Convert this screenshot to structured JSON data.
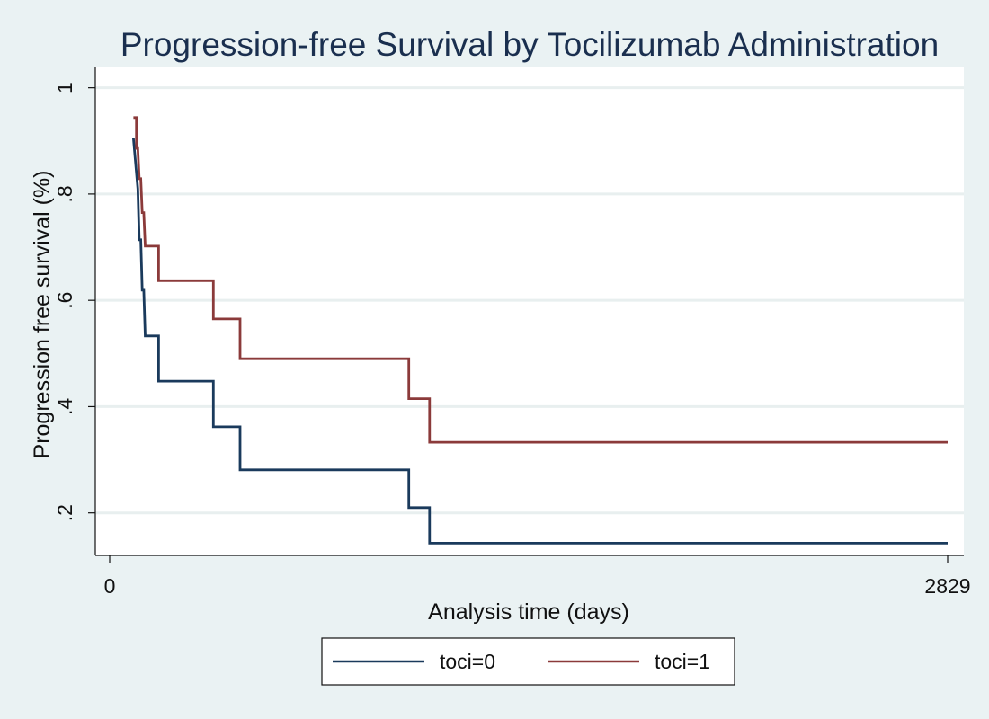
{
  "chart_data": {
    "type": "line",
    "subtype": "step",
    "title": "Progression-free Survival by Tocilizumab Administration",
    "xlabel": "Analysis time (days)",
    "ylabel": "Progression free survival (%)",
    "xlim": [
      0,
      2829
    ],
    "ylim": [
      0.12,
      1.04
    ],
    "x_ticks": [
      0,
      2829
    ],
    "x_tick_labels": [
      "0",
      "2829"
    ],
    "y_ticks": [
      0.2,
      0.4,
      0.6,
      0.8,
      1
    ],
    "y_tick_labels": [
      ".2",
      ".4",
      ".6",
      ".8",
      "1"
    ],
    "grid": "horizontal",
    "legend": "bottom",
    "series": [
      {
        "name": "toci=0",
        "color": "#1a3a5c",
        "points": [
          [
            80,
            0.905
          ],
          [
            95,
            0.81
          ],
          [
            100,
            0.714
          ],
          [
            105,
            0.714
          ],
          [
            110,
            0.619
          ],
          [
            115,
            0.619
          ],
          [
            120,
            0.533
          ],
          [
            165,
            0.533
          ],
          [
            165,
            0.448
          ],
          [
            350,
            0.448
          ],
          [
            350,
            0.362
          ],
          [
            440,
            0.362
          ],
          [
            440,
            0.281
          ],
          [
            1010,
            0.281
          ],
          [
            1010,
            0.21
          ],
          [
            1080,
            0.21
          ],
          [
            1080,
            0.143
          ],
          [
            2829,
            0.143
          ]
        ]
      },
      {
        "name": "toci=1",
        "color": "#8b3a3a",
        "points": [
          [
            80,
            0.944
          ],
          [
            90,
            0.944
          ],
          [
            90,
            0.886
          ],
          [
            95,
            0.886
          ],
          [
            100,
            0.829
          ],
          [
            105,
            0.829
          ],
          [
            110,
            0.765
          ],
          [
            115,
            0.765
          ],
          [
            120,
            0.702
          ],
          [
            165,
            0.702
          ],
          [
            165,
            0.637
          ],
          [
            350,
            0.637
          ],
          [
            350,
            0.565
          ],
          [
            440,
            0.565
          ],
          [
            440,
            0.49
          ],
          [
            1010,
            0.49
          ],
          [
            1010,
            0.415
          ],
          [
            1080,
            0.415
          ],
          [
            1080,
            0.333
          ],
          [
            2829,
            0.333
          ]
        ]
      }
    ]
  }
}
